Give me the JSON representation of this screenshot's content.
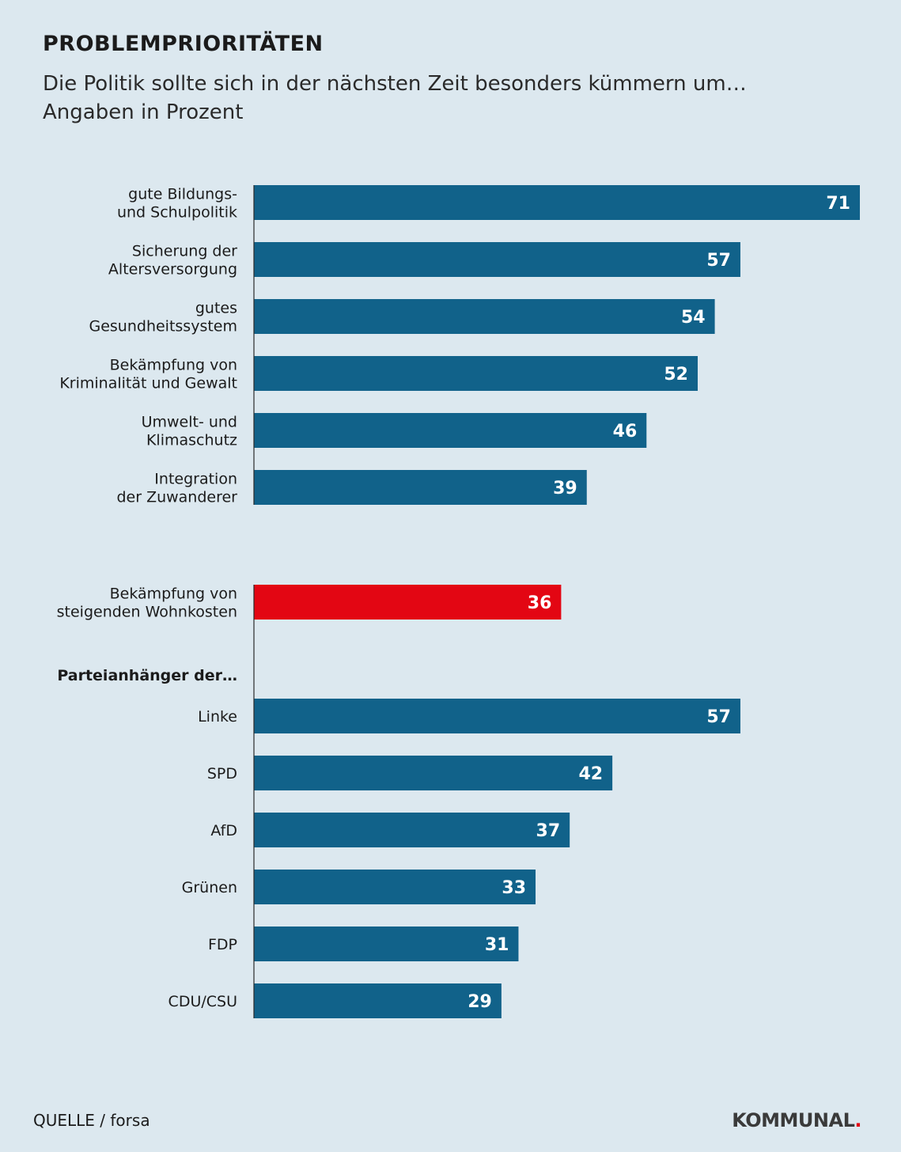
{
  "title": "PROBLEMPRIORITÄTEN",
  "subtitle": [
    "Die Politik sollte sich in der nächsten Zeit besonders kümmern um…",
    "Angaben in Prozent"
  ],
  "source": "QUELLE / forsa",
  "brand": {
    "text": "KOMMUNAL",
    "dot": "."
  },
  "colors": {
    "bar": "#11628a",
    "highlight": "#e30613",
    "background": "#dce8ef"
  },
  "chart_data": {
    "type": "bar",
    "orientation": "horizontal",
    "xlim": [
      0,
      71
    ],
    "groups": [
      {
        "heading": "",
        "bars": [
          {
            "label": [
              "gute Bildungs-",
              "und Schulpolitik"
            ],
            "value": 71
          },
          {
            "label": [
              "Sicherung der",
              "Altersversorgung"
            ],
            "value": 57
          },
          {
            "label": [
              "gutes",
              "Gesundheitssystem"
            ],
            "value": 54
          },
          {
            "label": [
              "Bekämpfung von",
              "Kriminalität und Gewalt"
            ],
            "value": 52
          },
          {
            "label": [
              "Umwelt- und",
              "Klimaschutz"
            ],
            "value": 46
          },
          {
            "label": [
              "Integration",
              "der Zuwanderer"
            ],
            "value": 39
          }
        ]
      },
      {
        "heading": "",
        "bars": [
          {
            "label": [
              "Bekämpfung von",
              "steigenden Wohnkosten"
            ],
            "value": 36,
            "highlight": true
          }
        ]
      },
      {
        "heading": "Parteianhänger der…",
        "bars": [
          {
            "label": [
              "Linke"
            ],
            "value": 57
          },
          {
            "label": [
              "SPD"
            ],
            "value": 42
          },
          {
            "label": [
              "AfD"
            ],
            "value": 37
          },
          {
            "label": [
              "Grünen"
            ],
            "value": 33
          },
          {
            "label": [
              "FDP"
            ],
            "value": 31
          },
          {
            "label": [
              "CDU/CSU"
            ],
            "value": 29
          }
        ]
      }
    ]
  }
}
